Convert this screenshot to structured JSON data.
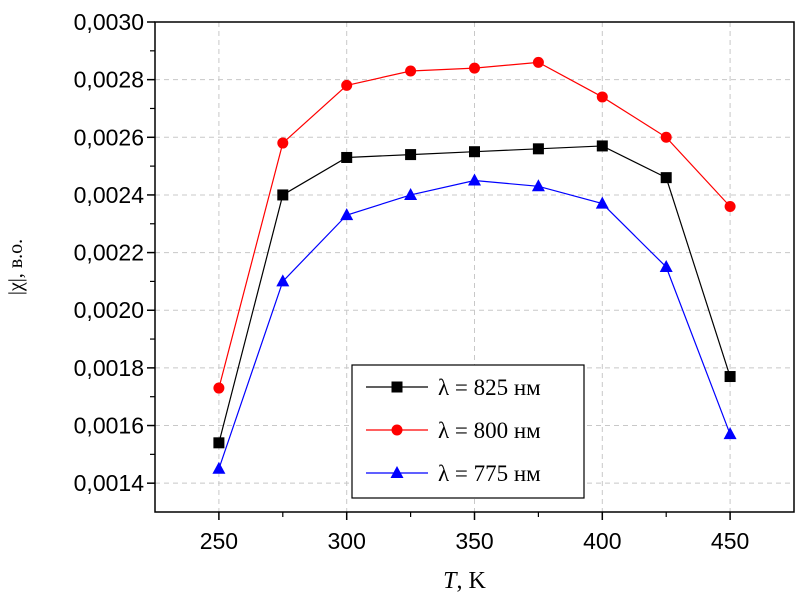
{
  "chart_data": {
    "type": "line",
    "xlabel_italic": "T",
    "xlabel_rest": ", K",
    "ylabel": "|χ|, в.о.",
    "xlim": [
      225,
      475
    ],
    "ylim": [
      0.0013,
      0.003
    ],
    "x_ticks": [
      250,
      300,
      350,
      400,
      450
    ],
    "x_tick_labels": [
      "250",
      "300",
      "350",
      "400",
      "450"
    ],
    "y_ticks": [
      0.0014,
      0.0016,
      0.0018,
      0.002,
      0.0022,
      0.0024,
      0.0026,
      0.0028,
      0.003
    ],
    "y_tick_labels": [
      "0,0014",
      "0,0016",
      "0,0018",
      "0,0020",
      "0,0022",
      "0,0024",
      "0,0026",
      "0,0028",
      "0,0030"
    ],
    "grid": true,
    "legend_position": "bottom-center",
    "x": [
      250,
      275,
      300,
      325,
      350,
      375,
      400,
      425,
      450
    ],
    "series": [
      {
        "name": "λ = 825 нм",
        "color": "#000000",
        "marker": "square",
        "values": [
          0.00154,
          0.0024,
          0.00253,
          0.00254,
          0.00255,
          0.00256,
          0.00257,
          0.00246,
          0.00177
        ]
      },
      {
        "name": "λ = 800 нм",
        "color": "#ff0000",
        "marker": "circle",
        "values": [
          0.00173,
          0.00258,
          0.00278,
          0.00283,
          0.00284,
          0.00286,
          0.00274,
          0.0026,
          0.00236
        ]
      },
      {
        "name": "λ = 775 нм",
        "color": "#0000ff",
        "marker": "triangle",
        "values": [
          0.00145,
          0.0021,
          0.00233,
          0.0024,
          0.00245,
          0.00243,
          0.00237,
          0.00215,
          0.00157
        ]
      }
    ]
  }
}
